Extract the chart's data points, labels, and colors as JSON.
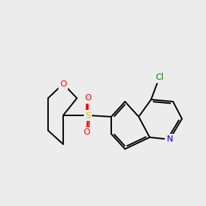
{
  "background_color": "#ececec",
  "bond_color": "#000000",
  "bond_width": 1.5,
  "atom_colors": {
    "O": "#ff0000",
    "N": "#0000cc",
    "Cl": "#008000",
    "S": "#cccc00",
    "SO_O": "#ff0000"
  },
  "font_size_atom": 9,
  "font_size_label": 8
}
